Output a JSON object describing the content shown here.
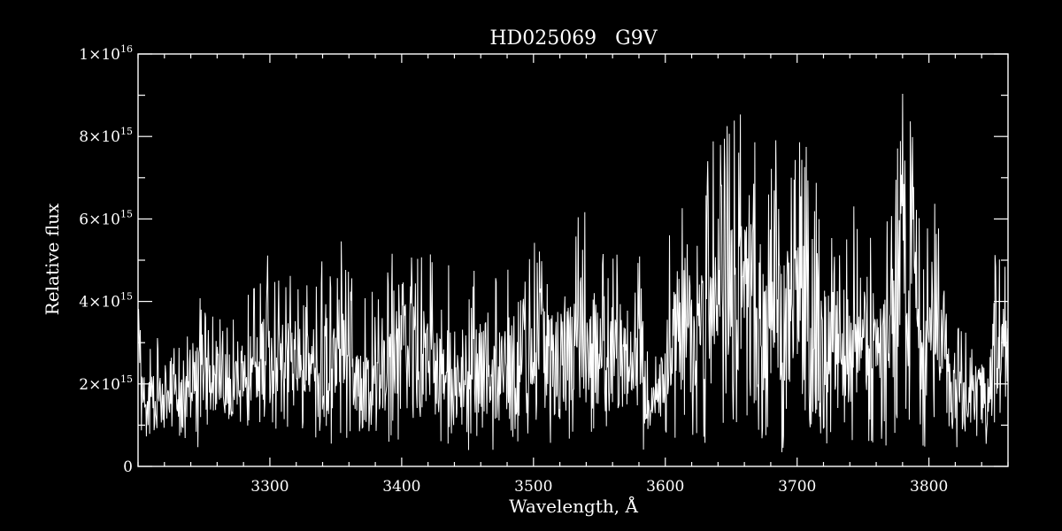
{
  "colors": {
    "background": "#000000",
    "foreground": "#ffffff"
  },
  "chart_data": {
    "type": "line",
    "title": "HD025069   G9V",
    "xlabel": "Wavelength, Å",
    "ylabel": "Relative flux",
    "xlim": [
      3200,
      3860
    ],
    "ylim": [
      0,
      1e+16
    ],
    "x_ticks": [
      {
        "value": 3300,
        "label": "3300"
      },
      {
        "value": 3400,
        "label": "3400"
      },
      {
        "value": 3500,
        "label": "3500"
      },
      {
        "value": 3600,
        "label": "3600"
      },
      {
        "value": 3700,
        "label": "3700"
      },
      {
        "value": 3800,
        "label": "3800"
      }
    ],
    "y_ticks": [
      {
        "value": 0,
        "label": "0",
        "base": "0",
        "exp": ""
      },
      {
        "value": 2000000000000000.0,
        "label": "2×10^15",
        "base": "2×10",
        "exp": "15"
      },
      {
        "value": 4000000000000000.0,
        "label": "4×10^15",
        "base": "4×10",
        "exp": "15"
      },
      {
        "value": 6000000000000000.0,
        "label": "6×10^15",
        "base": "6×10",
        "exp": "15"
      },
      {
        "value": 8000000000000000.0,
        "label": "8×10^15",
        "base": "8×10",
        "exp": "15"
      },
      {
        "value": 1e+16,
        "label": "1×10^16",
        "base": "1×10",
        "exp": "16"
      }
    ],
    "x_minor_step": 20,
    "y_minor_step": 1000000000000000.0,
    "grid": false,
    "series": [
      {
        "x": [
          3200,
          3205,
          3210,
          3215,
          3220,
          3225,
          3230,
          3235,
          3240,
          3245,
          3250,
          3255,
          3260,
          3265,
          3270,
          3275,
          3280,
          3285,
          3290,
          3295,
          3300,
          3305,
          3310,
          3315,
          3320,
          3325,
          3330,
          3335,
          3340,
          3345,
          3350,
          3355,
          3360,
          3365,
          3370,
          3375,
          3380,
          3385,
          3390,
          3395,
          3400,
          3405,
          3410,
          3415,
          3420,
          3425,
          3430,
          3435,
          3440,
          3445,
          3450,
          3455,
          3460,
          3465,
          3470,
          3475,
          3480,
          3485,
          3490,
          3495,
          3500,
          3505,
          3510,
          3515,
          3520,
          3525,
          3530,
          3535,
          3540,
          3545,
          3550,
          3555,
          3560,
          3565,
          3570,
          3575,
          3580,
          3585,
          3590,
          3595,
          3600,
          3605,
          3610,
          3615,
          3620,
          3625,
          3630,
          3635,
          3640,
          3645,
          3650,
          3655,
          3660,
          3665,
          3670,
          3675,
          3680,
          3685,
          3690,
          3695,
          3700,
          3705,
          3710,
          3715,
          3720,
          3725,
          3730,
          3735,
          3740,
          3745,
          3750,
          3755,
          3760,
          3765,
          3770,
          3775,
          3780,
          3785,
          3790,
          3795,
          3800,
          3805,
          3810,
          3815,
          3820,
          3825,
          3830,
          3835,
          3840,
          3845,
          3850,
          3855,
          3860
        ],
        "ymax": [
          3900000000000000.0,
          3000000000000000.0,
          3100000000000000.0,
          3400000000000000.0,
          2600000000000000.0,
          2800000000000000.0,
          3200000000000000.0,
          3000000000000000.0,
          3400000000000000.0,
          4300000000000000.0,
          3800000000000000.0,
          3900000000000000.0,
          3600000000000000.0,
          3800000000000000.0,
          3500000000000000.0,
          3700000000000000.0,
          4000000000000000.0,
          4400000000000000.0,
          4700000000000000.0,
          5500000000000000.0,
          5200000000000000.0,
          4900000000000000.0,
          4500000000000000.0,
          5000000000000000.0,
          4800000000000000.0,
          4300000000000000.0,
          4600000000000000.0,
          4700000000000000.0,
          5100000000000000.0,
          4800000000000000.0,
          5400000000000000.0,
          5700000000000000.0,
          5100000000000000.0,
          4500000000000000.0,
          4000000000000000.0,
          4700000000000000.0,
          4000000000000000.0,
          4500000000000000.0,
          5000000000000000.0,
          5600000000000000.0,
          5300000000000000.0,
          5900000000000000.0,
          5800000000000000.0,
          5600000000000000.0,
          5100000000000000.0,
          5500000000000000.0,
          5300000000000000.0,
          5200000000000000.0,
          4900000000000000.0,
          4400000000000000.0,
          3700000000000000.0,
          5500000000000000.0,
          5800000000000000.0,
          5000000000000000.0,
          4800000000000000.0,
          4600000000000000.0,
          4800000000000000.0,
          5400000000000000.0,
          4600000000000000.0,
          5300000000000000.0,
          6000000000000000.0,
          6200000000000000.0,
          5600000000000000.0,
          5300000000000000.0,
          6200000000000000.0,
          5900000000000000.0,
          5500000000000000.0,
          6400000000000000.0,
          6300000000000000.0,
          5900000000000000.0,
          5500000000000000.0,
          5200000000000000.0,
          5700000000000000.0,
          5100000000000000.0,
          5000000000000000.0,
          4500000000000000.0,
          5500000000000000.0,
          3200000000000000.0,
          2800000000000000.0,
          3000000000000000.0,
          4500000000000000.0,
          6500000000000000.0,
          6800000000000000.0,
          6600000000000000.0,
          7000000000000000.0,
          7600000000000000.0,
          7000000000000000.0,
          8000000000000000.0,
          7600000000000000.0,
          8200000000000000.0,
          8600000000000000.0,
          8300000000000000.0,
          8900000000000000.0,
          8700000000000000.0,
          8200000000000000.0,
          7700000000000000.0,
          8400000000000000.0,
          8600000000000000.0,
          7700000000000000.0,
          7900000000000000.0,
          7800000000000000.0,
          8000000000000000.0,
          7700000000000000.0,
          7300000000000000.0,
          6900000000000000.0,
          7100000000000000.0,
          6600000000000000.0,
          6300000000000000.0,
          6300000000000000.0,
          7000000000000000.0,
          6900000000000000.0,
          6400000000000000.0,
          6100000000000000.0,
          5900000000000000.0,
          6600000000000000.0,
          7800000000000000.0,
          9200000000000000.0,
          8600000000000000.0,
          8000000000000000.0,
          7000000000000000.0,
          6800000000000000.0,
          6400000000000000.0,
          5100000000000000.0,
          4400000000000000.0,
          3600000000000000.0,
          3300000000000000.0,
          3400000000000000.0,
          3200000000000000.0,
          3600000000000000.0,
          3700000000000000.0,
          5400000000000000.0,
          5600000000000000.0,
          4800000000000000.0
        ],
        "ymin": [
          700000000000000.0,
          600000000000000.0,
          400000000000000.0,
          300000000000000.0,
          500000000000000.0,
          600000000000000.0,
          400000000000000.0,
          300000000000000.0,
          500000000000000.0,
          400000000000000.0,
          600000000000000.0,
          700000000000000.0,
          900000000000000.0,
          800000000000000.0,
          700000000000000.0,
          900000000000000.0,
          1000000000000000.0,
          800000000000000.0,
          900000000000000.0,
          800000000000000.0,
          700000000000000.0,
          900000000000000.0,
          800000000000000.0,
          700000000000000.0,
          1000000000000000.0,
          900000000000000.0,
          800000000000000.0,
          600000000000000.0,
          700000000000000.0,
          500000000000000.0,
          600000000000000.0,
          400000000000000.0,
          500000000000000.0,
          600000000000000.0,
          300000000000000.0,
          500000000000000.0,
          400000000000000.0,
          600000000000000.0,
          500000000000000.0,
          400000000000000.0,
          500000000000000.0,
          300000000000000.0,
          400000000000000.0,
          500000000000000.0,
          600000000000000.0,
          700000000000000.0,
          500000000000000.0,
          400000000000000.0,
          300000000000000.0,
          200000000000000.0,
          400000000000000.0,
          300000000000000.0,
          500000000000000.0,
          400000000000000.0,
          300000000000000.0,
          500000000000000.0,
          400000000000000.0,
          600000000000000.0,
          500000000000000.0,
          400000000000000.0,
          300000000000000.0,
          400000000000000.0,
          500000000000000.0,
          600000000000000.0,
          400000000000000.0,
          500000000000000.0,
          700000000000000.0,
          600000000000000.0,
          500000000000000.0,
          600000000000000.0,
          700000000000000.0,
          800000000000000.0,
          600000000000000.0,
          500000000000000.0,
          700000000000000.0,
          600000000000000.0,
          400000000000000.0,
          300000000000000.0,
          500000000000000.0,
          600000000000000.0,
          400000000000000.0,
          500000000000000.0,
          400000000000000.0,
          300000000000000.0,
          400000000000000.0,
          600000000000000.0,
          500000000000000.0,
          400000000000000.0,
          300000000000000.0,
          400000000000000.0,
          500000000000000.0,
          600000000000000.0,
          800000000000000.0,
          600000000000000.0,
          500000000000000.0,
          600000000000000.0,
          700000000000000.0,
          400000000000000.0,
          300000000000000.0,
          500000000000000.0,
          400000000000000.0,
          300000000000000.0,
          200000000000000.0,
          400000000000000.0,
          500000000000000.0,
          300000000000000.0,
          200000000000000.0,
          400000000000000.0,
          300000000000000.0,
          200000000000000.0,
          300000000000000.0,
          400000000000000.0,
          500000000000000.0,
          400000000000000.0,
          600000000000000.0,
          800000000000000.0,
          1100000000000000.0,
          700000000000000.0,
          600000000000000.0,
          500000000000000.0,
          400000000000000.0,
          600000000000000.0,
          500000000000000.0,
          400000000000000.0,
          300000000000000.0,
          500000000000000.0,
          400000000000000.0,
          500000000000000.0,
          400000000000000.0,
          500000000000000.0,
          700000000000000.0,
          900000000000000.0,
          1300000000000000.0
        ]
      }
    ]
  }
}
